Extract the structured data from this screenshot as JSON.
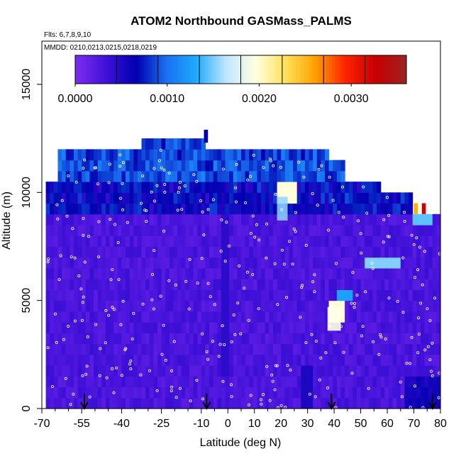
{
  "chart_data": {
    "type": "heatmap",
    "title": "ATOM2 Northbound GASMass_PALMS",
    "subtitle_flights": "Flts: 6,7,8,9,10",
    "subtitle_dates": "MMDD: 0210,0213,0215,0218,0219",
    "xlabel": "Latitude (deg N)",
    "ylabel": "Altitude (m)",
    "xlim": [
      -70,
      80
    ],
    "ylim": [
      0,
      17000
    ],
    "x_ticks": [
      -70,
      -55,
      -40,
      -25,
      -10,
      0,
      10,
      20,
      30,
      40,
      50,
      60,
      70,
      80
    ],
    "y_ticks": [
      0,
      5000,
      10000,
      15000
    ],
    "colorbar": {
      "range": [
        0,
        0.0036
      ],
      "tick_values": [
        0.0,
        0.001,
        0.002,
        0.003
      ],
      "tick_labels": [
        "0.0000",
        "0.0010",
        "0.0020",
        "0.0030"
      ],
      "colors": [
        "#7b2bf0",
        "#4010d8",
        "#0000b0",
        "#1a70f0",
        "#1eaaff",
        "#bfe6ff",
        "#ffffe0",
        "#ffe25a",
        "#ffa000",
        "#ff2200",
        "#c80000",
        "#9e2020"
      ]
    },
    "grid": false,
    "arrow_markers_latitude": [
      -54,
      -8,
      39,
      77
    ],
    "legend": "colorbar top inside plot"
  }
}
